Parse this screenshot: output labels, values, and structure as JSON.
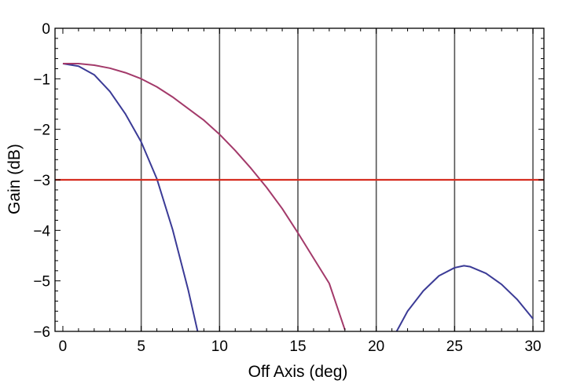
{
  "chart_data": {
    "type": "line",
    "title": "",
    "xlabel": "Off Axis (deg)",
    "ylabel": "Gain (dB)",
    "xlim": [
      -0.5,
      30.7
    ],
    "ylim": [
      -6,
      0
    ],
    "x_ticks": [
      0,
      5,
      10,
      15,
      20,
      25,
      30
    ],
    "y_ticks": [
      0,
      -1,
      -2,
      -3,
      -4,
      -5,
      -6
    ],
    "x_tick_labels": [
      "0",
      "5",
      "10",
      "15",
      "20",
      "25",
      "30"
    ],
    "y_tick_labels": [
      "0",
      "−1",
      "−2",
      "−3",
      "−4",
      "−5",
      "−6"
    ],
    "grid": "vertical lines at x = 5, 10, 15, 20, 25, 30",
    "series": [
      {
        "color": "#3b3b96",
        "x": [
          0,
          1,
          2,
          3,
          4,
          5,
          6,
          7,
          8,
          8.6
        ],
        "y": [
          -0.7,
          -0.75,
          -0.92,
          -1.25,
          -1.7,
          -2.25,
          -2.98,
          -3.98,
          -5.18,
          -6.0
        ]
      },
      {
        "color": "#3b3b96",
        "x": [
          21.3,
          22,
          23,
          24,
          25,
          25.6,
          26,
          27,
          28,
          29,
          30
        ],
        "y": [
          -6.0,
          -5.6,
          -5.2,
          -4.9,
          -4.74,
          -4.7,
          -4.72,
          -4.85,
          -5.07,
          -5.37,
          -5.75
        ]
      },
      {
        "color": "#a33a6a",
        "x": [
          0,
          1,
          2,
          3,
          4,
          5,
          6,
          7,
          8,
          9,
          10,
          11,
          12,
          13,
          14,
          15,
          16,
          17,
          18
        ],
        "y": [
          -0.7,
          -0.7,
          -0.73,
          -0.79,
          -0.88,
          -1.0,
          -1.16,
          -1.36,
          -1.59,
          -1.82,
          -2.1,
          -2.42,
          -2.77,
          -3.15,
          -3.57,
          -4.05,
          -4.55,
          -5.05,
          -5.97
        ]
      }
    ],
    "reference_line": {
      "y": -3,
      "color": "#d62d20"
    },
    "colors": {
      "axis": "#000000",
      "grid": "#555555"
    }
  }
}
